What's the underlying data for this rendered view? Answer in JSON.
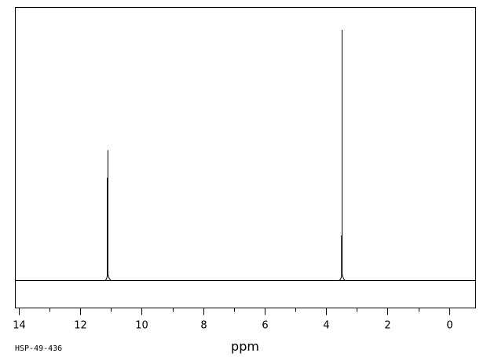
{
  "chart_data": {
    "type": "line",
    "title": "",
    "xlabel": "ppm",
    "ylabel": "",
    "xlim": [
      14.1,
      -0.85
    ],
    "ylim": [
      0,
      1
    ],
    "x_reversed": true,
    "grid": false,
    "legend": "none",
    "x_ticks_major": [
      14,
      12,
      10,
      8,
      6,
      4,
      2,
      0
    ],
    "x_tick_labels": [
      "14",
      "12",
      "10",
      "8",
      "6",
      "4",
      "2",
      "0"
    ],
    "x_ticks_minor": [
      13,
      11,
      9,
      7,
      5,
      3,
      1
    ],
    "peaks": [
      {
        "ppm": 11.1,
        "intensity": 0.52,
        "shoulder_ppm": 11.12,
        "shoulder_intensity": 0.41
      },
      {
        "ppm": 3.48,
        "intensity": 1.0,
        "shoulder_ppm": 3.5,
        "shoulder_intensity": 0.18
      }
    ]
  },
  "sample_id": "HSP-49-436"
}
